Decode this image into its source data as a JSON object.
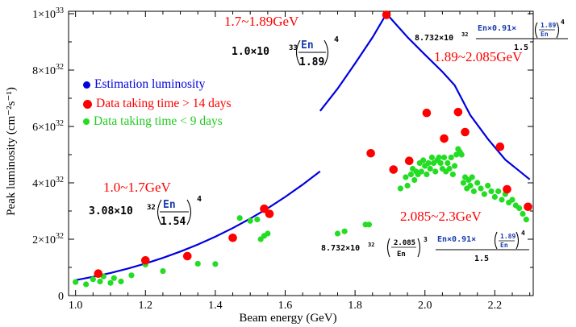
{
  "chart_data": {
    "type": "scatter",
    "xlabel": "Beam energy (GeV)",
    "ylabel": "Peak luminosity (cm⁻²s⁻¹)",
    "xlim": [
      0.98,
      2.31
    ],
    "ylim": [
      0,
      1.0
    ],
    "y_unit": "10^33",
    "x_ticks": [
      1.0,
      1.2,
      1.4,
      1.6,
      1.8,
      2.0,
      2.2
    ],
    "x_tick_labels": [
      "1.0",
      "1.2",
      "1.4",
      "1.6",
      "1.8",
      "2.0",
      "2.2"
    ],
    "y_ticks": [
      0,
      0.2,
      0.4,
      0.6,
      0.8,
      1.0
    ],
    "y_tick_labels": [
      {
        "mant": "0",
        "exp": ""
      },
      {
        "mant": "2×10",
        "exp": "32"
      },
      {
        "mant": "4×10",
        "exp": "32"
      },
      {
        "mant": "6×10",
        "exp": "32"
      },
      {
        "mant": "8×10",
        "exp": "32"
      },
      {
        "mant": "1×10",
        "exp": "33"
      }
    ],
    "grid": false,
    "legend_position": "top-left",
    "series": [
      {
        "name": "Estimation luminosity",
        "kind": "line",
        "color": "#0000e0",
        "segments": [
          {
            "x": [
              1.0,
              1.05,
              1.1,
              1.15,
              1.2,
              1.25,
              1.3,
              1.35,
              1.4,
              1.45,
              1.5,
              1.55,
              1.6,
              1.65,
              1.7
            ],
            "y": [
              0.0549,
              0.0667,
              0.0804,
              0.096,
              0.1138,
              0.1338,
              0.1562,
              0.1811,
              0.2088,
              0.2394,
              0.273,
              0.3098,
              0.35,
              0.3937,
              0.441
            ]
          },
          {
            "x": [
              1.7,
              1.75,
              1.8,
              1.85,
              1.89,
              1.95,
              2.0,
              2.05,
              2.085,
              2.13,
              2.18,
              2.23,
              2.3
            ],
            "y": [
              0.655,
              0.734,
              0.823,
              0.916,
              1.0,
              0.917,
              0.855,
              0.794,
              0.746,
              0.64,
              0.556,
              0.482,
              0.412
            ]
          }
        ]
      },
      {
        "name": "Data taking time > 14 days",
        "kind": "points",
        "color": "#ff0000",
        "x": [
          1.065,
          1.2,
          1.32,
          1.45,
          1.54,
          1.555,
          1.845,
          1.89,
          1.91,
          1.955,
          2.005,
          2.055,
          2.095,
          2.115,
          2.215,
          2.235,
          2.295
        ],
        "y": [
          0.078,
          0.125,
          0.14,
          0.205,
          0.308,
          0.29,
          0.505,
          0.996,
          0.447,
          0.478,
          0.648,
          0.557,
          0.651,
          0.58,
          0.528,
          0.377,
          0.315
        ]
      },
      {
        "name": "Data taking time < 9 days",
        "kind": "points",
        "color": "#22dd22",
        "x": [
          1.0,
          1.03,
          1.05,
          1.07,
          1.08,
          1.1,
          1.11,
          1.13,
          1.16,
          1.2,
          1.25,
          1.35,
          1.4,
          1.47,
          1.5,
          1.52,
          1.53,
          1.54,
          1.55,
          1.75,
          1.77,
          1.83,
          1.84,
          1.93,
          1.945,
          1.95,
          1.96,
          1.965,
          1.97,
          1.975,
          1.98,
          1.985,
          1.99,
          1.995,
          2.0,
          2.005,
          2.01,
          2.015,
          2.02,
          2.025,
          2.03,
          2.035,
          2.04,
          2.045,
          2.05,
          2.055,
          2.06,
          2.065,
          2.07,
          2.075,
          2.08,
          2.085,
          2.09,
          2.095,
          2.1,
          2.105,
          2.11,
          2.115,
          2.12,
          2.125,
          2.13,
          2.135,
          2.14,
          2.15,
          2.16,
          2.17,
          2.18,
          2.19,
          2.2,
          2.21,
          2.22,
          2.23,
          2.24,
          2.25,
          2.26,
          2.27,
          2.28,
          2.29
        ],
        "y": [
          0.048,
          0.04,
          0.058,
          0.05,
          0.068,
          0.045,
          0.062,
          0.05,
          0.072,
          0.11,
          0.087,
          0.113,
          0.112,
          0.275,
          0.265,
          0.27,
          0.2,
          0.212,
          0.22,
          0.22,
          0.228,
          0.252,
          0.252,
          0.38,
          0.42,
          0.39,
          0.43,
          0.45,
          0.41,
          0.44,
          0.43,
          0.47,
          0.44,
          0.48,
          0.46,
          0.43,
          0.47,
          0.45,
          0.49,
          0.47,
          0.44,
          0.48,
          0.49,
          0.47,
          0.45,
          0.49,
          0.44,
          0.47,
          0.45,
          0.49,
          0.43,
          0.46,
          0.5,
          0.52,
          0.51,
          0.5,
          0.4,
          0.42,
          0.38,
          0.41,
          0.39,
          0.42,
          0.37,
          0.4,
          0.38,
          0.36,
          0.39,
          0.37,
          0.35,
          0.37,
          0.34,
          0.36,
          0.33,
          0.34,
          0.32,
          0.31,
          0.29,
          0.27
        ]
      }
    ],
    "annotations": [
      {
        "text": "1.7~1.89GeV",
        "color": "#ff0000"
      },
      {
        "text": "1.89~2.085GeV",
        "color": "#ff0000"
      },
      {
        "text": "1.0~1.7GeV",
        "color": "#ff0000"
      },
      {
        "text": "2.085~2.3GeV",
        "color": "#ff0000"
      }
    ],
    "formulas": {
      "f1": {
        "coef": "1.0×10",
        "exp": "33",
        "num": "En",
        "den": "1.89",
        "power": "4"
      },
      "f2": {
        "coef": "3.08×10",
        "exp": "32",
        "num": "En",
        "den": "1.54",
        "power": "4"
      },
      "f3": {
        "coef": "8.732×10",
        "exp": "32",
        "numer_a": "En×0.91×",
        "num": "1.89",
        "den": "En",
        "power": "4",
        "denom": "1.5"
      },
      "f4": {
        "coef": "8.732×10",
        "exp": "32",
        "in_num": "2.085",
        "in_den": "En",
        "in_pow": "3",
        "numer_a": "En×0.91×",
        "num": "1.89",
        "den": "En",
        "power": "4",
        "denom": "1.5"
      }
    }
  }
}
